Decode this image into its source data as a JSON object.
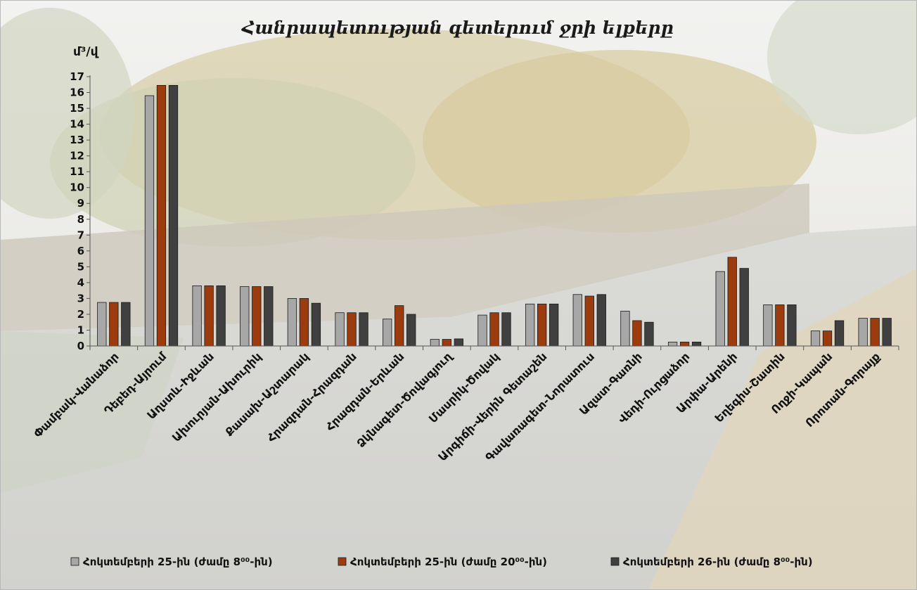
{
  "chart_data": {
    "type": "bar",
    "title": "Հանրապետության գետերում ջրի ելքերը",
    "ylabel": "մ³/վ",
    "ylim": [
      0,
      17
    ],
    "yticks": [
      0,
      1,
      2,
      3,
      4,
      5,
      6,
      7,
      8,
      9,
      10,
      11,
      12,
      13,
      14,
      15,
      16,
      17
    ],
    "grid": false,
    "legend_position": "bottom",
    "categories": [
      "Փամբակ-Վանաձոր",
      "Դեբեդ-Այրում",
      "Աղստև-Իջևան",
      "Ախուրյան-Ախուրիկ",
      "Քասախ-Աշտարակ",
      "Հրազդան-Հրազդան",
      "Հրազդան-Երևան",
      "Ձկնագետ-Ծովագյուղ",
      "Մասրիկ-Ծովակ",
      "Արգիճի-Վերին Գետաշեն",
      "Գավառագետ-Նորատուս",
      "Ազատ-Գառնի",
      "Վեդի-Ուրցաձոր",
      "Արփա-Արենի",
      "Եղեգիս-Շատին",
      "Ողջի-Կապան",
      "Որոտան-Գորայք"
    ],
    "series": [
      {
        "name": "Հոկտեմբերի 25-ին (ժամը 8⁰⁰-ին)",
        "color": "#a7a7a7",
        "values": [
          2.75,
          15.8,
          3.8,
          3.75,
          3.0,
          2.1,
          1.7,
          0.42,
          1.95,
          2.65,
          3.25,
          2.2,
          0.25,
          4.7,
          2.6,
          0.95,
          1.75
        ]
      },
      {
        "name": "Հոկտեմբերի 25-ին (ժամը 20⁰⁰-ին)",
        "color": "#9c3c0e",
        "values": [
          2.75,
          16.45,
          3.8,
          3.75,
          3.0,
          2.1,
          2.55,
          0.42,
          2.1,
          2.65,
          3.15,
          1.6,
          0.25,
          5.6,
          2.6,
          0.95,
          1.75
        ]
      },
      {
        "name": "Հոկտեմբերի 26-ին (ժամը 8⁰⁰-ին)",
        "color": "#404040",
        "values": [
          2.75,
          16.45,
          3.8,
          3.75,
          2.7,
          2.1,
          2.0,
          0.45,
          2.1,
          2.65,
          3.25,
          1.5,
          0.25,
          4.9,
          2.6,
          1.6,
          1.75
        ]
      }
    ]
  }
}
